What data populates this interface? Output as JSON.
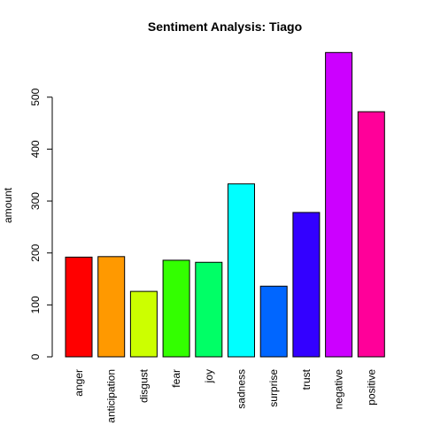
{
  "chart_data": {
    "type": "bar",
    "title": "Sentiment Analysis: Tiago",
    "xlabel": "",
    "ylabel": "amount",
    "ylim": [
      0,
      590
    ],
    "yticks": [
      0,
      100,
      200,
      300,
      400,
      500
    ],
    "categories": [
      "anger",
      "anticipation",
      "disgust",
      "fear",
      "joy",
      "sadness",
      "surprise",
      "trust",
      "negative",
      "positive"
    ],
    "values": [
      192,
      193,
      126,
      186,
      182,
      333,
      136,
      278,
      586,
      472
    ],
    "colors": [
      "#FF0000",
      "#FF9900",
      "#CCFF00",
      "#33FF00",
      "#00FF66",
      "#00FFFF",
      "#0066FF",
      "#3300FF",
      "#CC00FF",
      "#FF0099"
    ],
    "grid": false,
    "legend": "none"
  }
}
